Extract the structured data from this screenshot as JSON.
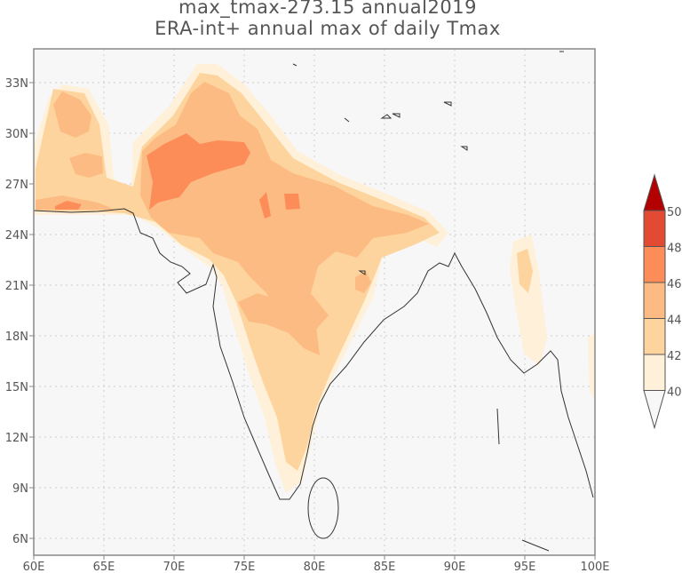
{
  "chart_data": {
    "type": "heatmap",
    "subtype": "filled-contour-map",
    "title": "max_tmax-273.15 annual2019",
    "subtitle": "ERA-int+ annual max of daily Tmax",
    "xlabel": "",
    "ylabel": "",
    "xlim": [
      60,
      100
    ],
    "ylim": [
      5,
      35
    ],
    "x_ticks": [
      "60E",
      "65E",
      "70E",
      "75E",
      "80E",
      "85E",
      "90E",
      "95E",
      "100E"
    ],
    "y_ticks": [
      "6N",
      "9N",
      "12N",
      "15N",
      "18N",
      "21N",
      "24N",
      "27N",
      "30N",
      "33N"
    ],
    "grid": true,
    "colorbar": {
      "position": "right",
      "levels": [
        "40",
        "42",
        "44",
        "46",
        "48",
        "50"
      ],
      "colors": {
        "below_40": "#f7f7f7",
        "40_42": "#fef0d9",
        "42_44": "#fdd49e",
        "44_46": "#fdbb84",
        "46_48": "#fc8d59",
        "48_50": "#e34a33",
        "above_50": "#b30000"
      }
    },
    "background_color": "#f7f7f7",
    "coastline_color": "#333333"
  }
}
